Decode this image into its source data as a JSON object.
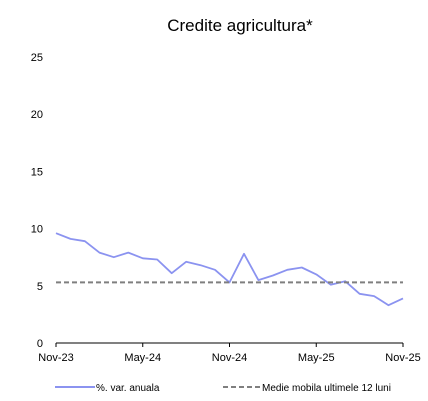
{
  "chart_data": {
    "type": "line",
    "title": "Credite agricultura*",
    "xlabel": "",
    "ylabel": "",
    "x": [
      "Nov-23",
      "Dec-23",
      "Jan-24",
      "Feb-24",
      "Mar-24",
      "Apr-24",
      "May-24",
      "Jun-24",
      "Jul-24",
      "Aug-24",
      "Sep-24",
      "Oct-24",
      "Nov-24",
      "Dec-24",
      "Jan-25",
      "Feb-25",
      "Mar-25",
      "Apr-25",
      "May-25",
      "Jun-25",
      "Jul-25",
      "Aug-25",
      "Sep-25",
      "Oct-25",
      "Nov-25"
    ],
    "x_tick_labels": [
      "Nov-23",
      "May-24",
      "Nov-24",
      "May-25",
      "Nov-25"
    ],
    "y_ticks": [
      0,
      5,
      10,
      15,
      20,
      25
    ],
    "ylim": [
      0,
      25
    ],
    "grid": false,
    "legend_position": "bottom",
    "series": [
      {
        "name": "%. var. anuala",
        "color": "#8b93f0",
        "style": "solid",
        "values": [
          9.6,
          9.1,
          8.9,
          7.9,
          7.5,
          7.9,
          7.4,
          7.3,
          6.1,
          7.1,
          6.8,
          6.4,
          5.3,
          7.8,
          5.5,
          5.9,
          6.4,
          6.6,
          6.0,
          5.1,
          5.4,
          4.3,
          4.1,
          3.3,
          3.9
        ]
      },
      {
        "name": "Medie mobila ultimele 12 luni",
        "color": "#7f7f7f",
        "style": "dashed",
        "values": [
          5.3,
          5.3,
          5.3,
          5.3,
          5.3,
          5.3,
          5.3,
          5.3,
          5.3,
          5.3,
          5.3,
          5.3,
          5.3,
          5.3,
          5.3,
          5.3,
          5.3,
          5.3,
          5.3,
          5.3,
          5.3,
          5.3,
          5.3,
          5.3,
          5.3
        ]
      }
    ]
  }
}
